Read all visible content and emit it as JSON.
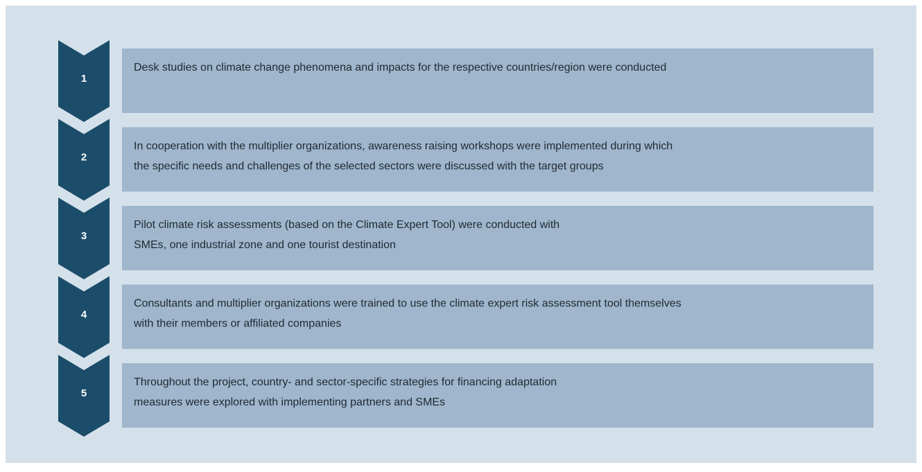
{
  "steps": [
    {
      "number": "1",
      "lines": [
        "Desk studies on climate change phenomena and impacts for the respective countries/region were conducted"
      ]
    },
    {
      "number": "2",
      "lines": [
        "In cooperation with the multiplier organizations, awareness raising workshops were implemented during which",
        "the specific needs and challenges of the selected sectors were discussed with the target groups"
      ]
    },
    {
      "number": "3",
      "lines": [
        "Pilot climate risk assessments (based on the Climate Expert Tool) were conducted with",
        "SMEs, one industrial zone and one tourist destination"
      ]
    },
    {
      "number": "4",
      "lines": [
        "Consultants and multiplier organizations were trained to use the climate expert risk assessment tool themselves",
        "with their members or affiliated companies"
      ]
    },
    {
      "number": "5",
      "lines": [
        "Throughout the project, country- and sector-specific strategies for financing adaptation",
        "measures were explored with implementing partners and SMEs"
      ]
    }
  ]
}
